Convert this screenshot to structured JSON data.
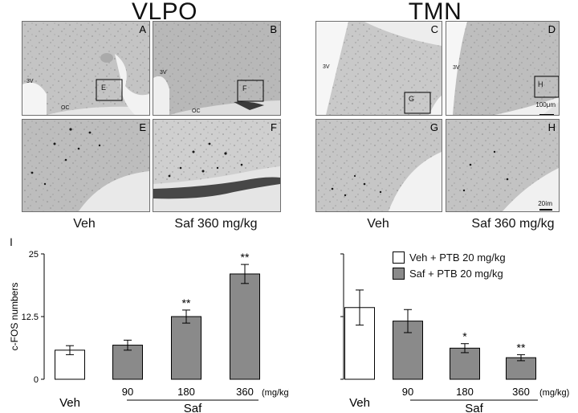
{
  "headings": {
    "left": "VLPO",
    "right": "TMN"
  },
  "panels": [
    {
      "letter": "A",
      "marks": [
        "3V",
        "OC"
      ]
    },
    {
      "letter": "B",
      "marks": [
        "3V",
        "OC"
      ]
    },
    {
      "letter": "C",
      "marks": [
        "3V"
      ]
    },
    {
      "letter": "D",
      "marks": [
        "3V"
      ]
    },
    {
      "letter": "E",
      "marks": []
    },
    {
      "letter": "F",
      "marks": []
    },
    {
      "letter": "G",
      "marks": []
    },
    {
      "letter": "H",
      "marks": []
    }
  ],
  "inset_labels": {
    "A": "E",
    "B": "F",
    "C": "G",
    "D": "H"
  },
  "scale_bars": {
    "low_mag": "100μm",
    "high_mag": "20ím"
  },
  "conditions": {
    "left_veh": "Veh",
    "left_saf": "Saf 360 mg/kg",
    "right_veh": "Veh",
    "right_saf": "Saf 360 mg/kg"
  },
  "panel_i_label": "I",
  "legend": [
    {
      "label": "Veh + PTB 20 mg/kg",
      "color": "#ffffff"
    },
    {
      "label": "Saf + PTB 20 mg/kg",
      "color": "#8a8a8a"
    }
  ],
  "chart_data": [
    {
      "type": "bar",
      "title": "",
      "ylabel": "c-FOS numbers",
      "ylim": [
        0,
        25
      ],
      "yticks": [
        "0",
        "12.5",
        "25"
      ],
      "categories": [
        "Veh",
        "90",
        "180",
        "360"
      ],
      "unit_label": "(mg/kg)",
      "group_label": "Saf",
      "values": [
        5.8,
        6.8,
        12.5,
        21.0
      ],
      "errors": [
        0.9,
        1.0,
        1.3,
        1.9
      ],
      "significance": [
        "",
        "",
        "**",
        "**"
      ],
      "colors": [
        "#ffffff",
        "#8a8a8a",
        "#8a8a8a",
        "#8a8a8a"
      ]
    },
    {
      "type": "bar",
      "title": "",
      "ylabel": "",
      "ylim": [
        0,
        25
      ],
      "categories": [
        "Veh",
        "90",
        "180",
        "360"
      ],
      "unit_label": "(mg/kg)",
      "group_label": "Saf",
      "values": [
        14.3,
        11.6,
        6.2,
        4.3
      ],
      "errors": [
        3.5,
        2.3,
        0.9,
        0.6
      ],
      "significance": [
        "",
        "",
        "*",
        "**"
      ],
      "colors": [
        "#ffffff",
        "#8a8a8a",
        "#8a8a8a",
        "#8a8a8a"
      ]
    }
  ]
}
